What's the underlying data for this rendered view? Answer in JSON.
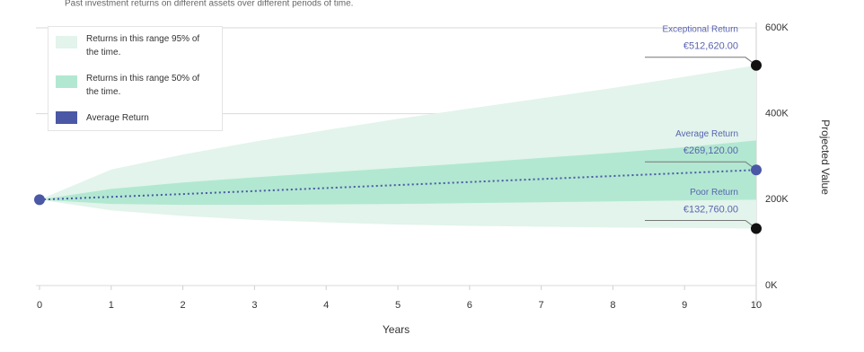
{
  "chart_data": {
    "type": "band",
    "note": "Past investment returns on different assets over different periods of time.",
    "x_label": "Years",
    "y_label": "Projected Value",
    "x": [
      0,
      1,
      2,
      3,
      4,
      5,
      6,
      7,
      8,
      9,
      10
    ],
    "xlim": [
      0,
      10
    ],
    "xticks": [
      0,
      1,
      2,
      3,
      4,
      5,
      6,
      7,
      8,
      9,
      10
    ],
    "ylim": [
      0,
      600000
    ],
    "yticks": [
      {
        "value": 0,
        "label": "0K"
      },
      {
        "value": 200000,
        "label": "200K"
      },
      {
        "value": 400000,
        "label": "400K"
      },
      {
        "value": 600000,
        "label": "600K"
      }
    ],
    "grid": true,
    "series": [
      {
        "name": "Returns in this range 95% of the time.",
        "color": "#e2f4eb",
        "upper": [
          200000,
          270000,
          305000,
          335000,
          362000,
          388000,
          412000,
          436000,
          460000,
          486000,
          512620
        ],
        "lower": [
          200000,
          175000,
          162000,
          153000,
          147000,
          142000,
          139000,
          137000,
          135000,
          134000,
          132760
        ]
      },
      {
        "name": "Returns in this range 50% of the time.",
        "color": "#b2e8d1",
        "upper": [
          200000,
          225000,
          240000,
          252000,
          263000,
          274000,
          285000,
          297000,
          309000,
          322000,
          338000
        ],
        "lower": [
          200000,
          190000,
          188000,
          188000,
          189000,
          190000,
          192000,
          194000,
          196000,
          198000,
          200000
        ]
      },
      {
        "name": "Average Return",
        "color": "#4a58a6",
        "values": [
          200000,
          206500,
          213000,
          220000,
          227000,
          234000,
          241000,
          248000,
          255000,
          262000,
          269120
        ]
      }
    ],
    "annotations": [
      {
        "label": "Exceptional Return",
        "x": 10,
        "value": 512620,
        "value_label": "€512,620.00",
        "color": "#111111"
      },
      {
        "label": "Average Return",
        "x": 10,
        "value": 269120,
        "value_label": "€269,120.00",
        "color": "#4a58a6"
      },
      {
        "label": "Poor Return",
        "x": 10,
        "value": 132760,
        "value_label": "€132,760.00",
        "color": "#111111"
      }
    ],
    "start_point": {
      "x": 0,
      "value": 200000,
      "color": "#4a58a6"
    }
  }
}
